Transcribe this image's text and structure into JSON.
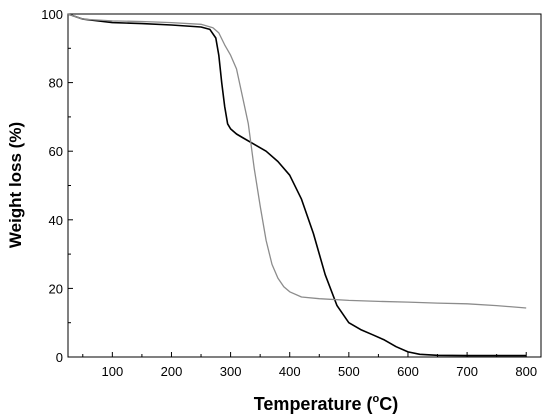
{
  "chart_data": {
    "type": "line",
    "title": "",
    "xlabel": "Temperature",
    "xlabel_unit_prefix": "(",
    "xlabel_unit_sup": "o",
    "xlabel_unit_suffix": "C)",
    "ylabel": "Weight loss (%)",
    "xlim": [
      25,
      825
    ],
    "ylim": [
      0,
      100
    ],
    "xticks": [
      100,
      200,
      300,
      400,
      500,
      600,
      700,
      800
    ],
    "yticks": [
      0,
      20,
      40,
      60,
      80,
      100
    ],
    "grid": false,
    "legend": "none",
    "series": [
      {
        "color": "#000000",
        "x": [
          25,
          50,
          100,
          150,
          200,
          250,
          265,
          275,
          280,
          285,
          290,
          295,
          300,
          310,
          320,
          340,
          360,
          380,
          400,
          420,
          440,
          460,
          480,
          500,
          520,
          540,
          560,
          580,
          600,
          620,
          650,
          700,
          750,
          800
        ],
        "y": [
          100,
          98.5,
          97.5,
          97.2,
          96.8,
          96.2,
          95.5,
          93,
          88,
          80,
          73,
          68,
          66.5,
          65,
          64,
          62,
          60,
          57,
          53,
          46,
          36,
          24,
          15,
          10,
          8,
          6.5,
          5,
          3,
          1.5,
          0.8,
          0.5,
          0.4,
          0.4,
          0.4
        ]
      },
      {
        "color": "#8c8c8c",
        "x": [
          25,
          50,
          100,
          150,
          200,
          250,
          270,
          280,
          290,
          300,
          310,
          320,
          330,
          340,
          350,
          360,
          370,
          380,
          390,
          400,
          420,
          450,
          500,
          550,
          600,
          650,
          700,
          750,
          800
        ],
        "y": [
          100,
          98.5,
          98,
          97.8,
          97.5,
          97,
          96,
          94.5,
          91,
          88,
          84,
          76,
          68,
          55,
          44,
          34,
          27,
          23,
          20.5,
          19,
          17.5,
          17,
          16.5,
          16.2,
          16,
          15.7,
          15.5,
          15,
          14.3
        ]
      }
    ]
  }
}
